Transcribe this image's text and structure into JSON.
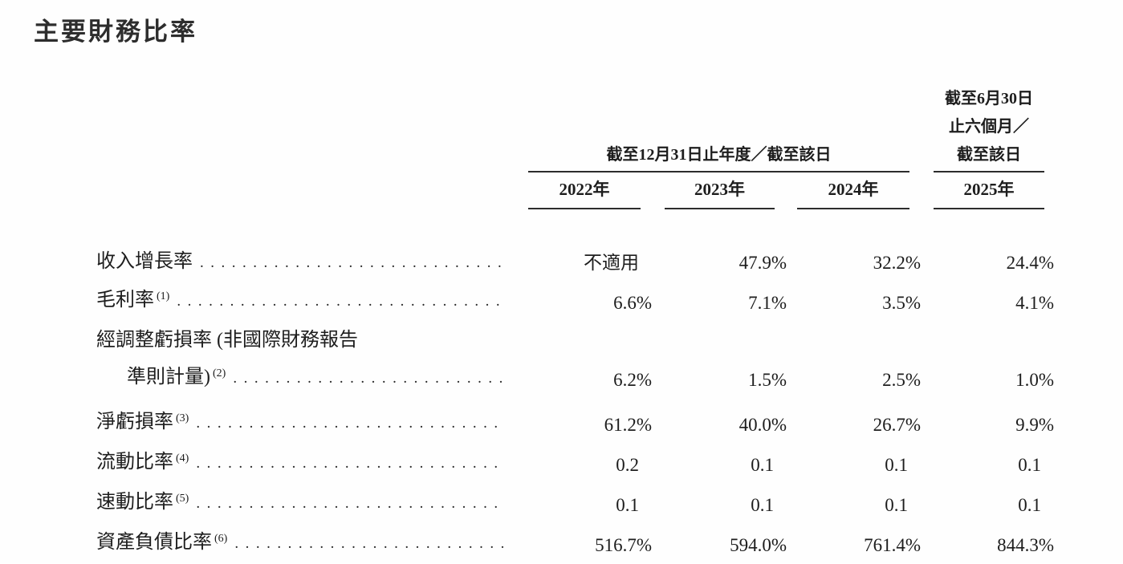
{
  "page": {
    "title": "主要財務比率"
  },
  "table": {
    "header": {
      "annual_group": "截至12月31日止年度／截至該日",
      "interim_lines": [
        "截至6月30日",
        "止六個月／",
        "截至該日"
      ],
      "years": [
        "2022年",
        "2023年",
        "2024年",
        "2025年"
      ]
    },
    "rows": [
      {
        "label_lines": [
          "收入增長率"
        ],
        "footnote": "",
        "values": [
          "不適用",
          "47.9%",
          "32.2%",
          "24.4%"
        ]
      },
      {
        "label_lines": [
          "毛利率"
        ],
        "footnote": "(1)",
        "values": [
          "6.6%",
          "7.1%",
          "3.5%",
          "4.1%"
        ]
      },
      {
        "label_lines": [
          "經調整虧損率 (非國際財務報告",
          "準則計量)"
        ],
        "footnote": "(2)",
        "values": [
          "6.2%",
          "1.5%",
          "2.5%",
          "1.0%"
        ]
      },
      {
        "label_lines": [
          "淨虧損率"
        ],
        "footnote": "(3)",
        "values": [
          "61.2%",
          "40.0%",
          "26.7%",
          "9.9%"
        ]
      },
      {
        "label_lines": [
          "流動比率"
        ],
        "footnote": "(4)",
        "values": [
          "0.2",
          "0.1",
          "0.1",
          "0.1"
        ]
      },
      {
        "label_lines": [
          "速動比率"
        ],
        "footnote": "(5)",
        "values": [
          "0.1",
          "0.1",
          "0.1",
          "0.1"
        ]
      },
      {
        "label_lines": [
          "資產負債比率"
        ],
        "footnote": "(6)",
        "values": [
          "516.7%",
          "594.0%",
          "761.4%",
          "844.3%"
        ]
      }
    ]
  }
}
